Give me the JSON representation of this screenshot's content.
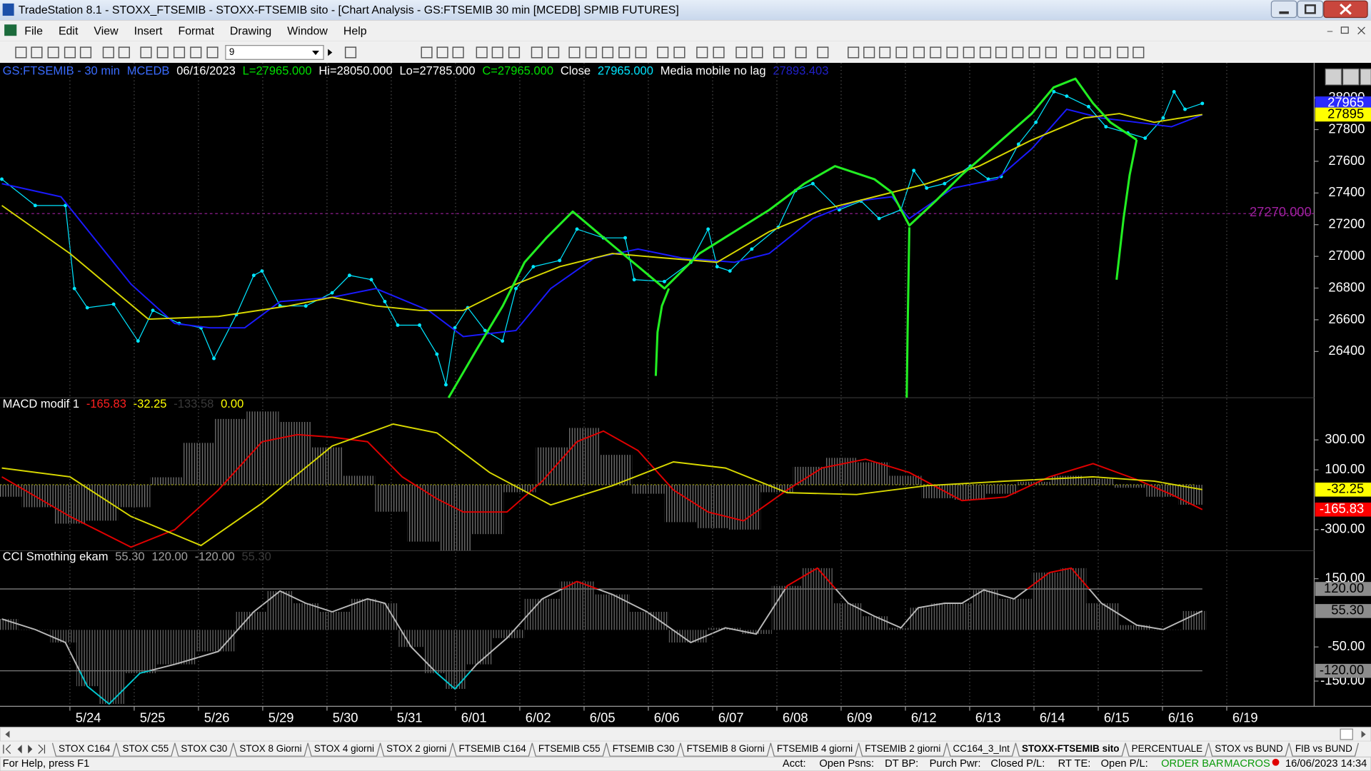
{
  "window": {
    "title": "TradeStation 8.1 - STOXX_FTSEMIB - STOXX-FTSEMIB sito - [Chart Analysis - GS:FTSEMIB  30 min  [MCEDB] SPMIB FUTURES]"
  },
  "menu": [
    "File",
    "Edit",
    "View",
    "Insert",
    "Format",
    "Drawing",
    "Window",
    "Help"
  ],
  "toolbar": {
    "interval": "9"
  },
  "chart_data": [
    {
      "type": "line",
      "header": [
        {
          "text": "GS:FTSEMIB - 30 min",
          "color": "#3a6cff"
        },
        {
          "text": "MCEDB",
          "color": "#3a6cff"
        },
        {
          "text": "06/16/2023",
          "color": "#ffffff"
        },
        {
          "text": "L=27965.000",
          "color": "#00e000"
        },
        {
          "text": "Hi=28050.000",
          "color": "#ffffff"
        },
        {
          "text": "Lo=27785.000",
          "color": "#ffffff"
        },
        {
          "text": "C=27965.000",
          "color": "#00e000"
        },
        {
          "text": "Close",
          "color": "#ffffff"
        },
        {
          "text": "27965.000",
          "color": "#00e5ff"
        },
        {
          "text": "Media mobile no lag",
          "color": "#ffffff"
        },
        {
          "text": "27893.403",
          "color": "#2020c8"
        }
      ],
      "xlim": [
        -1.088,
        19.36
      ],
      "ylim": [
        26108,
        28204
      ],
      "yticks": [
        26400,
        26600,
        26800,
        27000,
        27200,
        27400,
        27600,
        27800,
        28000
      ],
      "level": {
        "value": 27270,
        "label": "27270.000",
        "color": "#a020a0"
      },
      "series": [
        {
          "color": "#00e5ff",
          "marker": "dot",
          "x": [
            -1.06,
            -0.54,
            -0.07,
            0.07,
            0.27,
            0.68,
            1.06,
            1.29,
            1.7,
            2.04,
            2.24,
            2.59,
            2.86,
            2.99,
            3.27,
            3.67,
            4.08,
            4.35,
            4.69,
            4.9,
            5.1,
            5.44,
            5.71,
            5.85,
            5.99,
            6.19,
            6.46,
            6.73,
            6.94,
            7.21,
            7.62,
            7.89,
            8.3,
            8.64,
            8.78,
            9.25,
            9.66,
            9.93,
            10.07,
            10.27,
            10.61,
            11.02,
            11.29,
            11.56,
            11.97,
            12.31,
            12.59,
            12.93,
            13.13,
            13.33,
            13.61,
            14.01,
            14.29,
            14.49,
            14.76,
            15.03,
            15.31,
            15.51,
            15.85,
            16.12,
            16.46,
            16.73,
            17.01,
            17.18,
            17.35,
            17.62
          ],
          "values": [
            27487,
            27321,
            27321,
            26797,
            26676,
            26698,
            26466,
            26659,
            26577,
            26549,
            26356,
            26632,
            26880,
            26908,
            26687,
            26687,
            26770,
            26880,
            26853,
            26715,
            26566,
            26566,
            26383,
            26190,
            26549,
            26676,
            26532,
            26466,
            26797,
            26935,
            26974,
            27172,
            27117,
            27117,
            26853,
            26841,
            26963,
            27172,
            26935,
            26908,
            27046,
            27183,
            27415,
            27459,
            27294,
            27349,
            27239,
            27294,
            27542,
            27431,
            27459,
            27570,
            27487,
            27504,
            27708,
            27846,
            28039,
            28011,
            27945,
            27818,
            27779,
            27746,
            27873,
            28039,
            27928,
            27965
          ]
        },
        {
          "color": "#1a1aff",
          "x": [
            -1.06,
            -0.14,
            0.95,
            1.63,
            2.18,
            2.72,
            3.27,
            4.08,
            4.76,
            5.58,
            6.12,
            6.94,
            7.48,
            8.16,
            8.84,
            9.52,
            10.34,
            10.88,
            11.56,
            12.24,
            12.79,
            13.06,
            13.74,
            14.42,
            14.97,
            15.51,
            16.05,
            16.6,
            17.14,
            17.62
          ],
          "values": [
            27459,
            27376,
            26825,
            26577,
            26549,
            26549,
            26715,
            26742,
            26797,
            26659,
            26494,
            26532,
            26797,
            26990,
            27046,
            26990,
            26963,
            27018,
            27239,
            27349,
            27376,
            27239,
            27431,
            27487,
            27680,
            27928,
            27873,
            27846,
            27818,
            27893.403
          ]
        },
        {
          "color": "#d8d800",
          "x": [
            -1.06,
            0,
            1.22,
            2.31,
            3.4,
            4.08,
            4.76,
            5.44,
            6.12,
            6.94,
            7.62,
            8.44,
            9.25,
            10.07,
            10.88,
            11.7,
            12.52,
            13.33,
            14.15,
            14.97,
            15.78,
            16.33,
            16.87,
            17.62
          ],
          "values": [
            27321,
            27018,
            26604,
            26621,
            26687,
            26742,
            26687,
            26659,
            26659,
            26825,
            26935,
            27018,
            26990,
            26963,
            27156,
            27294,
            27376,
            27459,
            27570,
            27735,
            27873,
            27901,
            27846,
            27895
          ]
        }
      ],
      "markers": [
        {
          "value": 27965,
          "color": "#2a2aff",
          "text_color": "#ffffff"
        },
        {
          "value": 27895,
          "color": "#ffff00",
          "text_color": "#000000"
        }
      ]
    },
    {
      "type": "line",
      "header": [
        {
          "text": "MACD modif 1",
          "color": "#ffffff"
        },
        {
          "text": "-165.83",
          "color": "#ff2020"
        },
        {
          "text": "-32.25",
          "color": "#ffff00"
        },
        {
          "text": "-133.58",
          "color": "#3a3a3a"
        },
        {
          "text": "0.00",
          "color": "#ffff00"
        }
      ],
      "xlim": [
        -1.088,
        19.36
      ],
      "ylim": [
        -441,
        576
      ],
      "yticks": [
        {
          "value": 300,
          "label": "300.00"
        },
        {
          "value": 100,
          "label": "100.00"
        },
        {
          "value": -300,
          "label": "-300.00"
        }
      ],
      "zero_line": {
        "value": 0,
        "color": "#9a9a00"
      },
      "series": [
        {
          "type": "histogram",
          "color": "#7a7a7a",
          "x": [
            -1,
            -0.5,
            0,
            0.5,
            1,
            1.5,
            2,
            2.5,
            3,
            3.5,
            4,
            4.5,
            5,
            5.5,
            6,
            6.5,
            7,
            7.5,
            8,
            8.5,
            9,
            9.5,
            10,
            10.5,
            11,
            11.5,
            12,
            12.5,
            13,
            13.5,
            14,
            14.5,
            15,
            15.5,
            16,
            16.5,
            17,
            17.5
          ],
          "values": [
            -80,
            -150,
            -260,
            -240,
            -150,
            50,
            280,
            440,
            490,
            420,
            250,
            60,
            -180,
            -380,
            -440,
            -330,
            -50,
            250,
            380,
            200,
            -60,
            -250,
            -290,
            -300,
            -50,
            120,
            180,
            150,
            60,
            -90,
            -100,
            -60,
            20,
            60,
            40,
            -20,
            -80,
            -133.58
          ]
        },
        {
          "color": "#e00000",
          "x": [
            -1.06,
            0,
            0.95,
            1.63,
            2.31,
            2.99,
            3.54,
            4.08,
            4.63,
            5.17,
            5.71,
            6.12,
            6.8,
            7.35,
            7.89,
            8.3,
            8.84,
            9.39,
            9.93,
            10.48,
            11.16,
            11.7,
            12.38,
            13.06,
            13.88,
            14.56,
            15.24,
            15.92,
            16.6,
            17.14,
            17.62
          ],
          "values": [
            53,
            -212,
            -417,
            -300,
            -35,
            288,
            335,
            318,
            288,
            53,
            -94,
            -182,
            -182,
            24,
            288,
            359,
            229,
            -35,
            -182,
            -241,
            -35,
            112,
            171,
            82,
            -106,
            -82,
            53,
            141,
            35,
            -65,
            -165.83
          ]
        },
        {
          "color": "#d8d800",
          "x": [
            -1.06,
            0,
            0.95,
            2.04,
            2.99,
            4.08,
            5.03,
            5.71,
            6.53,
            7.48,
            8.44,
            9.39,
            10.2,
            11.16,
            12.24,
            13.33,
            14.56,
            15.92,
            16.87,
            17.62
          ],
          "values": [
            112,
            53,
            -212,
            -406,
            -123,
            259,
            406,
            347,
            82,
            -135,
            -6,
            153,
            112,
            -53,
            -65,
            -6,
            24,
            53,
            24,
            -32.25
          ]
        }
      ],
      "markers": [
        {
          "value": -32.25,
          "color": "#ffff00",
          "text_color": "#000000"
        },
        {
          "value": -165.83,
          "color": "#ff0000",
          "text_color": "#ffffff"
        }
      ]
    },
    {
      "type": "line",
      "header": [
        {
          "text": "CCI Smothing ekam",
          "color": "#ffffff"
        },
        {
          "text": "55.30",
          "color": "#a0a0a0"
        },
        {
          "text": "120.00",
          "color": "#a0a0a0"
        },
        {
          "text": "-120.00",
          "color": "#a0a0a0"
        },
        {
          "text": "55.30",
          "color": "#3a3a3a"
        }
      ],
      "xlim": [
        -1.088,
        19.36
      ],
      "ylim": [
        -224,
        229.5
      ],
      "yticks": [
        {
          "value": 150,
          "label": "150.00"
        },
        {
          "value": -50,
          "label": "-50.00"
        },
        {
          "value": -150,
          "label": "-150.00"
        }
      ],
      "xticks": [
        {
          "value": 0,
          "label": "5/24"
        },
        {
          "value": 1,
          "label": "5/25"
        },
        {
          "value": 2,
          "label": "5/26"
        },
        {
          "value": 3,
          "label": "5/29"
        },
        {
          "value": 4,
          "label": "5/30"
        },
        {
          "value": 5,
          "label": "5/31"
        },
        {
          "value": 6,
          "label": "6/01"
        },
        {
          "value": 7,
          "label": "6/02"
        },
        {
          "value": 8,
          "label": "6/05"
        },
        {
          "value": 9,
          "label": "6/06"
        },
        {
          "value": 10,
          "label": "6/07"
        },
        {
          "value": 11,
          "label": "6/08"
        },
        {
          "value": 12,
          "label": "6/09"
        },
        {
          "value": 13,
          "label": "6/12"
        },
        {
          "value": 14,
          "label": "6/13"
        },
        {
          "value": 15,
          "label": "6/14"
        },
        {
          "value": 16,
          "label": "6/15"
        },
        {
          "value": 17,
          "label": "6/16"
        },
        {
          "value": 18,
          "label": "6/19"
        }
      ],
      "levels": [
        {
          "value": 120,
          "color": "#8a8a8a"
        },
        {
          "value": -120,
          "color": "#8a8a8a"
        }
      ],
      "series": [
        {
          "color": "#b8b8b8",
          "high_color": "#e00000",
          "low_color": "#00c8d0",
          "histogram_color": "#6a6a6a",
          "x": [
            -1.06,
            -0.54,
            -0.07,
            0.27,
            0.61,
            1.09,
            1.63,
            2.31,
            2.86,
            3.27,
            3.67,
            4.08,
            4.63,
            4.9,
            5.31,
            5.71,
            5.99,
            6.33,
            6.8,
            7.35,
            7.89,
            8.44,
            8.98,
            9.66,
            10.2,
            10.68,
            11.16,
            11.63,
            12.11,
            12.52,
            12.93,
            13.2,
            13.61,
            13.88,
            14.22,
            14.69,
            15.24,
            15.58,
            16.05,
            16.6,
            17.01,
            17.62
          ],
          "values": [
            32,
            1,
            -37,
            -165,
            -217,
            -127,
            -101,
            -63,
            53,
            114,
            78,
            53,
            91,
            78,
            -50,
            -127,
            -173,
            -101,
            -24,
            91,
            142,
            104,
            53,
            -37,
            6,
            -12,
            129,
            181,
            78,
            40,
            6,
            65,
            78,
            78,
            117,
            91,
            168,
            181,
            78,
            14,
            1,
            55.3
          ]
        }
      ],
      "markers": [
        {
          "value": 120,
          "label": "120.00",
          "color": "#8c8c8c",
          "text_color": "#000000"
        },
        {
          "value": 55.3,
          "label": "55.30",
          "color": "#8c8c8c",
          "text_color": "#000000"
        },
        {
          "value": -120,
          "label": "-120.00",
          "color": "#8c8c8c",
          "text_color": "#000000"
        }
      ]
    }
  ],
  "tabs": {
    "items": [
      "STOX C164",
      "STOX C55",
      "STOX  C30",
      "STOX  8 Giorni",
      "STOX 4 giorni",
      "STOX  2 giorni",
      "FTSEMIB C164",
      "FTSEMIB C55",
      "FTSEMIB C30",
      "FTSEMIB  8 Giorni",
      "FTSEMIB  4 giorni",
      "FTSEMIB  2 giorni",
      "CC164_3_Int",
      "STOXX-FTSEMIB sito",
      "PERCENTUALE",
      "STOX vs BUND",
      "FIB vs BUND"
    ],
    "active": 13
  },
  "status": {
    "help": "For Help, press F1",
    "fields": [
      "Acct:",
      "Open Psns:",
      "DT BP:",
      "Purch Pwr:",
      "Closed P/L:",
      "RT TE:",
      "Open P/L:"
    ],
    "order_bar": "ORDER BAR",
    "macros": "MACROS",
    "datetime": "16/06/2023 14:34"
  }
}
